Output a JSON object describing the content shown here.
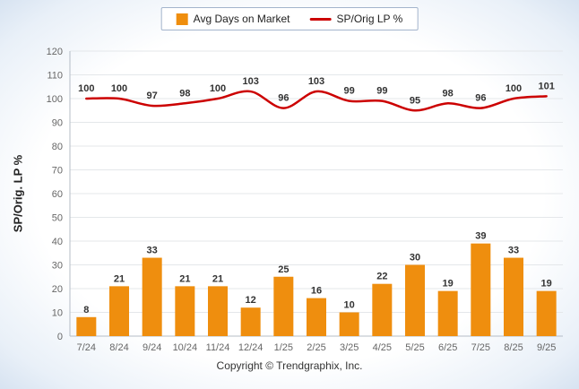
{
  "legend": {
    "items": [
      {
        "label": "Avg Days on Market",
        "type": "bar",
        "color": "#EF8E0E"
      },
      {
        "label": "SP/Orig LP %",
        "type": "line",
        "color": "#CC0000"
      }
    ]
  },
  "chart_data": {
    "type": "bar+line",
    "categories": [
      "7/24",
      "8/24",
      "9/24",
      "10/24",
      "11/24",
      "12/24",
      "1/25",
      "2/25",
      "3/25",
      "4/25",
      "5/25",
      "6/25",
      "7/25",
      "8/25",
      "9/25"
    ],
    "series": [
      {
        "name": "Avg Days on Market",
        "type": "bar",
        "color": "#EF8E0E",
        "values": [
          8,
          21,
          33,
          21,
          21,
          12,
          25,
          16,
          10,
          22,
          30,
          19,
          39,
          33,
          19
        ]
      },
      {
        "name": "SP/Orig LP %",
        "type": "line",
        "color": "#CC0000",
        "values": [
          100,
          100,
          97,
          98,
          100,
          103,
          96,
          103,
          99,
          99,
          95,
          98,
          96,
          100,
          101
        ]
      }
    ],
    "title": "",
    "xlabel": "",
    "ylabel": "SP/Orig. LP %",
    "ylim": [
      0,
      120
    ],
    "ytick_step": 10,
    "grid": true,
    "legend_position": "top-center",
    "data_labels": true
  },
  "footer": {
    "copyright": "Copyright © Trendgraphix, Inc."
  }
}
